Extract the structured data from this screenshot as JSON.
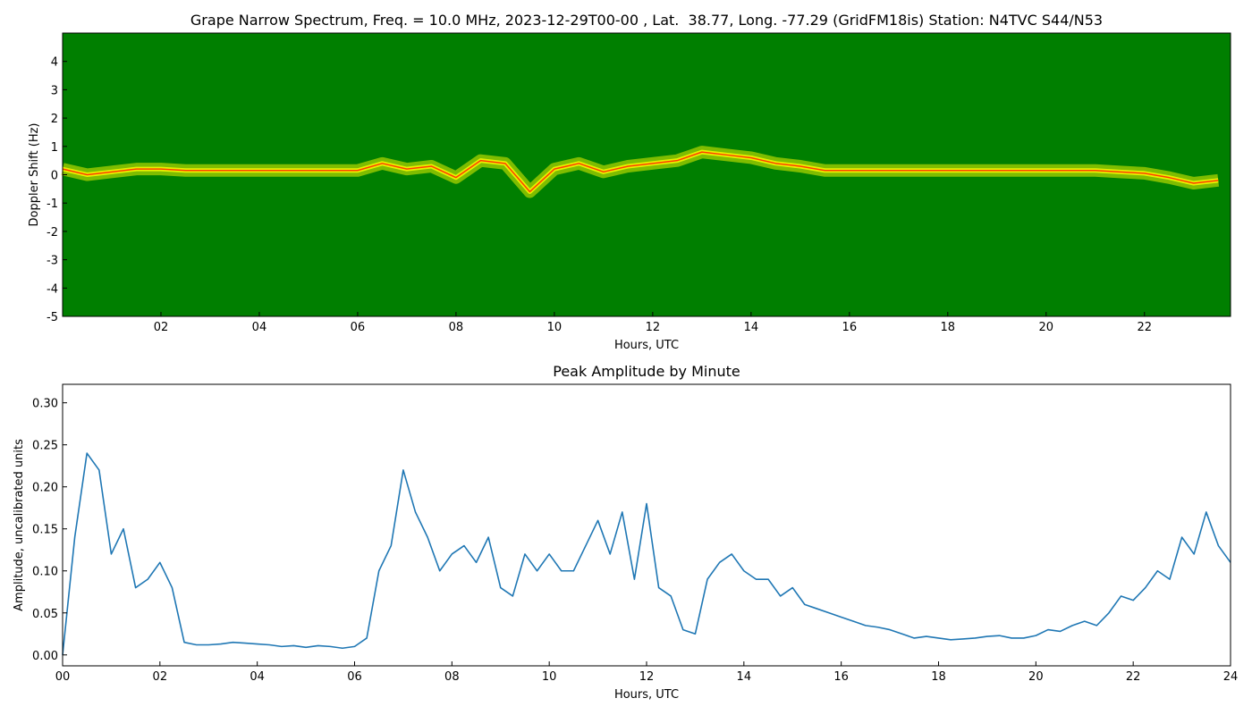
{
  "chart_data": [
    {
      "type": "spectrogram",
      "title": "Grape Narrow Spectrum, Freq. = 10.0 MHz, 2023-12-29T00-00 , Lat.  38.77, Long. -77.29 (GridFM18is) Station: N4TVC S44/N53",
      "xlabel": "Hours, UTC",
      "ylabel": "Doppler Shift (Hz)",
      "background": "#007f00",
      "glow_color": "#e8f000",
      "color": "#ff4000",
      "x": [
        0,
        0.5,
        1,
        1.5,
        2,
        2.5,
        3,
        3.5,
        4,
        4.5,
        5,
        5.5,
        6,
        6.5,
        7,
        7.5,
        8,
        8.5,
        9,
        9.5,
        10,
        10.5,
        11,
        11.5,
        12,
        12.5,
        13,
        13.5,
        14,
        14.5,
        15,
        15.5,
        16,
        16.5,
        17,
        17.5,
        18,
        18.5,
        19,
        19.5,
        20,
        20.5,
        21,
        21.5,
        22,
        22.5,
        23,
        23.5
      ],
      "values": [
        0.2,
        0,
        0.1,
        0.2,
        0.2,
        0.15,
        0.15,
        0.15,
        0.15,
        0.15,
        0.15,
        0.15,
        0.15,
        0.4,
        0.2,
        0.3,
        -0.1,
        0.5,
        0.4,
        -0.6,
        0.2,
        0.4,
        0.1,
        0.3,
        0.4,
        0.5,
        0.8,
        0.7,
        0.6,
        0.4,
        0.3,
        0.15,
        0.15,
        0.15,
        0.15,
        0.15,
        0.15,
        0.15,
        0.15,
        0.15,
        0.15,
        0.15,
        0.15,
        0.1,
        0.05,
        -0.1,
        -0.3,
        -0.2
      ],
      "xlim": [
        0,
        23.75
      ],
      "ylim": [
        -5,
        5
      ],
      "xticks": [
        {
          "value": 2,
          "label": "02"
        },
        {
          "value": 4,
          "label": "04"
        },
        {
          "value": 6,
          "label": "06"
        },
        {
          "value": 8,
          "label": "08"
        },
        {
          "value": 10,
          "label": "10"
        },
        {
          "value": 12,
          "label": "12"
        },
        {
          "value": 14,
          "label": "14"
        },
        {
          "value": 16,
          "label": "16"
        },
        {
          "value": 18,
          "label": "18"
        },
        {
          "value": 20,
          "label": "20"
        },
        {
          "value": 22,
          "label": "22"
        }
      ],
      "yticks": [
        -5,
        -4,
        -3,
        -2,
        -1,
        0,
        1,
        2,
        3,
        4
      ]
    },
    {
      "type": "line",
      "title": "Peak Amplitude by Minute",
      "xlabel": "Hours, UTC",
      "ylabel": "Amplitude, uncalibrated units",
      "color": "#1f77b4",
      "x": [
        0,
        0.25,
        0.5,
        0.75,
        1,
        1.25,
        1.5,
        1.75,
        2,
        2.25,
        2.5,
        2.75,
        3,
        3.25,
        3.5,
        3.75,
        4,
        4.25,
        4.5,
        4.75,
        5,
        5.25,
        5.5,
        5.75,
        6,
        6.25,
        6.5,
        6.75,
        7,
        7.25,
        7.5,
        7.75,
        8,
        8.25,
        8.5,
        8.75,
        9,
        9.25,
        9.5,
        9.75,
        10,
        10.25,
        10.5,
        10.75,
        11,
        11.25,
        11.5,
        11.75,
        12,
        12.25,
        12.5,
        12.75,
        13,
        13.25,
        13.5,
        13.75,
        14,
        14.25,
        14.5,
        14.75,
        15,
        15.25,
        15.5,
        15.75,
        16,
        16.25,
        16.5,
        16.75,
        17,
        17.25,
        17.5,
        17.75,
        18,
        18.25,
        18.5,
        18.75,
        19,
        19.25,
        19.5,
        19.75,
        20,
        20.25,
        20.5,
        20.75,
        21,
        21.25,
        21.5,
        21.75,
        22,
        22.25,
        22.5,
        22.75,
        23,
        23.25,
        23.5,
        23.75,
        24
      ],
      "values": [
        0,
        0.14,
        0.24,
        0.22,
        0.12,
        0.15,
        0.08,
        0.09,
        0.11,
        0.08,
        0.015,
        0.012,
        0.012,
        0.013,
        0.015,
        0.014,
        0.013,
        0.012,
        0.01,
        0.011,
        0.009,
        0.011,
        0.01,
        0.008,
        0.01,
        0.02,
        0.1,
        0.13,
        0.22,
        0.17,
        0.14,
        0.1,
        0.12,
        0.13,
        0.11,
        0.14,
        0.08,
        0.07,
        0.12,
        0.1,
        0.12,
        0.1,
        0.1,
        0.13,
        0.16,
        0.12,
        0.17,
        0.09,
        0.18,
        0.08,
        0.07,
        0.03,
        0.025,
        0.09,
        0.11,
        0.12,
        0.1,
        0.09,
        0.09,
        0.07,
        0.08,
        0.06,
        0.055,
        0.05,
        0.045,
        0.04,
        0.035,
        0.033,
        0.03,
        0.025,
        0.02,
        0.022,
        0.02,
        0.018,
        0.019,
        0.02,
        0.022,
        0.023,
        0.02,
        0.02,
        0.023,
        0.03,
        0.028,
        0.035,
        0.04,
        0.035,
        0.05,
        0.07,
        0.065,
        0.08,
        0.1,
        0.09,
        0.14,
        0.12,
        0.17,
        0.13,
        0.11
      ],
      "xlim": [
        0,
        24
      ],
      "ylim": [
        -0.013,
        0.322
      ],
      "xticks": [
        {
          "value": 0,
          "label": "00"
        },
        {
          "value": 2,
          "label": "02"
        },
        {
          "value": 4,
          "label": "04"
        },
        {
          "value": 6,
          "label": "06"
        },
        {
          "value": 8,
          "label": "08"
        },
        {
          "value": 10,
          "label": "10"
        },
        {
          "value": 12,
          "label": "12"
        },
        {
          "value": 14,
          "label": "14"
        },
        {
          "value": 16,
          "label": "16"
        },
        {
          "value": 18,
          "label": "18"
        },
        {
          "value": 20,
          "label": "20"
        },
        {
          "value": 22,
          "label": "22"
        },
        {
          "value": 24,
          "label": "24"
        }
      ],
      "yticks": [
        {
          "value": 0,
          "label": "0.00"
        },
        0.05,
        {
          "value": 0.1,
          "label": "0.10"
        },
        0.15,
        {
          "value": 0.2,
          "label": "0.20"
        },
        0.25,
        {
          "value": 0.3,
          "label": "0.30"
        }
      ]
    }
  ]
}
